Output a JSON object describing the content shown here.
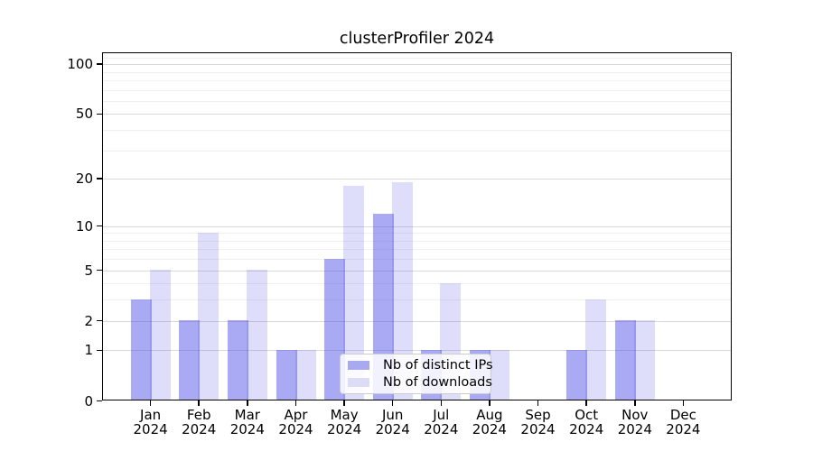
{
  "title": "clusterProfiler 2024",
  "chart_data": {
    "type": "bar",
    "title": "clusterProfiler 2024",
    "xlabel": "",
    "ylabel": "",
    "categories": [
      "Jan",
      "Feb",
      "Mar",
      "Apr",
      "May",
      "Jun",
      "Jul",
      "Aug",
      "Sep",
      "Oct",
      "Nov",
      "Dec"
    ],
    "category_sublabel": "2024",
    "series": [
      {
        "name": "Nb of distinct IPs",
        "values": [
          3,
          2,
          2,
          1,
          6,
          12,
          1,
          1,
          0,
          1,
          2,
          0
        ],
        "fill_rgba": "rgba(70,70,230,0.46)",
        "legend_color": "#a9a9f0"
      },
      {
        "name": "Nb of downloads",
        "values": [
          5,
          9,
          5,
          1,
          18,
          19,
          4,
          1,
          0,
          3,
          2,
          0
        ],
        "fill_rgba": "rgba(70,70,230,0.18)",
        "legend_color": "#dcdcf8"
      }
    ],
    "yscale": "log1p",
    "ylim": [
      0,
      116
    ],
    "yticks": [
      0,
      1,
      2,
      5,
      10,
      20,
      50,
      100
    ],
    "yticks_minor": [
      3,
      4,
      6,
      7,
      8,
      9,
      30,
      40,
      60,
      70,
      80,
      90,
      110
    ],
    "grid": true,
    "grid_major_color": "#d9d9d9",
    "grid_minor_color": "#f0f0f0",
    "legend_position": "lower center",
    "legend_bg": "rgba(255,255,255,0.85)"
  }
}
